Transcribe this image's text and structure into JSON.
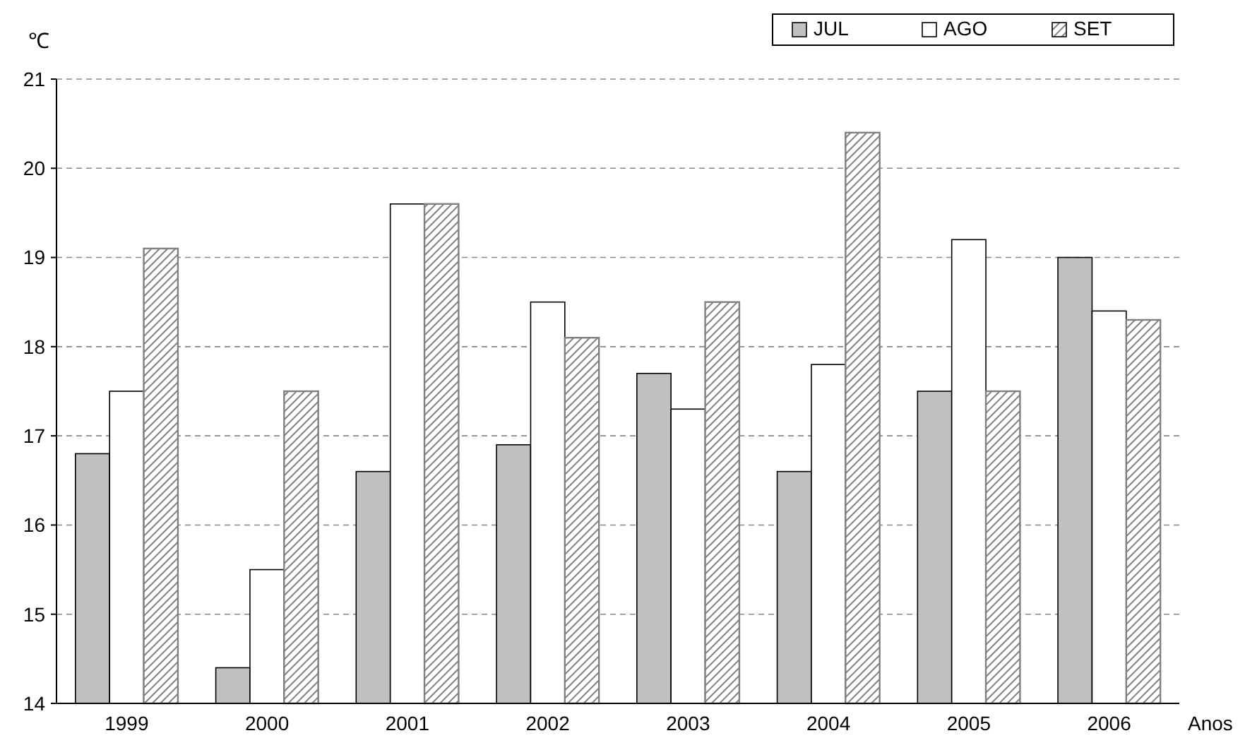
{
  "chart_data": {
    "type": "bar",
    "ylabel": "℃",
    "xlabel": "Anos",
    "categories": [
      "1999",
      "2000",
      "2001",
      "2002",
      "2003",
      "2004",
      "2005",
      "2006"
    ],
    "series": [
      {
        "name": "JUL",
        "color": "#c0c0c0",
        "values": [
          16.8,
          14.4,
          16.6,
          16.9,
          17.7,
          16.6,
          17.5,
          19.0
        ]
      },
      {
        "name": "AGO",
        "color": "#ffffff",
        "values": [
          17.5,
          15.5,
          19.6,
          18.5,
          17.3,
          17.8,
          19.2,
          18.4
        ]
      },
      {
        "name": "SET",
        "color": "#808080",
        "values": [
          19.1,
          17.5,
          19.6,
          18.1,
          18.5,
          20.4,
          17.5,
          18.3
        ]
      }
    ],
    "ylim": [
      14,
      21
    ],
    "yticks": [
      14,
      15,
      16,
      17,
      18,
      19,
      20,
      21
    ],
    "grid": "y",
    "legend": "top right"
  }
}
